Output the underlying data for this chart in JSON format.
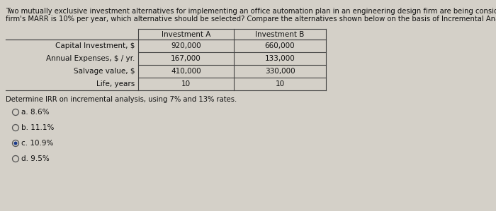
{
  "title_line1": "Two mutually exclusive investment alternatives for implementing an office automation plan in an engineering design firm are being considered. If the",
  "title_line2": "firm's MARR is 10% per year, which alternative should be selected? Compare the alternatives shown below on the basis of Incremental Analysis.",
  "col_headers": [
    "Investment A",
    "Investment B"
  ],
  "row_labels": [
    "Capital Investment, $",
    "Annual Expenses, $ / yr.",
    "Salvage value, $",
    "Life, years"
  ],
  "col_a": [
    "920,000",
    "167,000",
    "410,000",
    "10"
  ],
  "col_b": [
    "660,000",
    "133,000",
    "330,000",
    "10"
  ],
  "subtitle": "Determine IRR on incremental analysis, using 7% and 13% rates.",
  "options": [
    {
      "label": "a. 8.6%",
      "selected": false
    },
    {
      "label": "b. 11.1%",
      "selected": false
    },
    {
      "label": "c. 10.9%",
      "selected": true
    },
    {
      "label": "d. 9.5%",
      "selected": false
    }
  ],
  "bg_color": "#d4d0c8",
  "text_color": "#111111",
  "selected_dot_color": "#1a3a8a",
  "title_fontsize": 7.2,
  "table_fontsize": 7.5,
  "subtitle_fontsize": 7.2,
  "option_fontsize": 7.5,
  "line_color": "#444444",
  "fig_width": 7.0,
  "fig_height": 2.99,
  "dpi": 100
}
